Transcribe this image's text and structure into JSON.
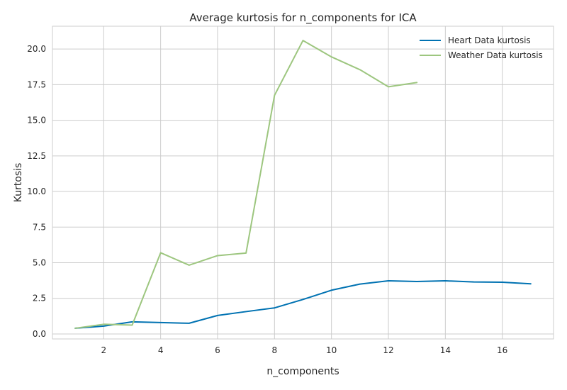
{
  "chart_data": {
    "type": "line",
    "title": "Average kurtosis for n_components for ICA",
    "xlabel": "n_components",
    "ylabel": "Kurtosis",
    "xlim": [
      0.2,
      17.8
    ],
    "ylim": [
      -0.35,
      21.6
    ],
    "xticks": [
      2,
      4,
      6,
      8,
      10,
      12,
      14,
      16
    ],
    "yticks": [
      0.0,
      2.5,
      5.0,
      7.5,
      10.0,
      12.5,
      15.0,
      17.5,
      20.0
    ],
    "ytick_labels": [
      "0.0",
      "2.5",
      "5.0",
      "7.5",
      "10.0",
      "12.5",
      "15.0",
      "17.5",
      "20.0"
    ],
    "grid": true,
    "legend_position": "top-right",
    "series": [
      {
        "name": "Heart Data kurtosis",
        "color": "#0072b2",
        "x": [
          1,
          2,
          3,
          4,
          5,
          6,
          7,
          8,
          9,
          10,
          11,
          12,
          13,
          14,
          15,
          16,
          17
        ],
        "values": [
          0.4,
          0.55,
          0.85,
          0.8,
          0.75,
          1.3,
          1.57,
          1.83,
          2.42,
          3.07,
          3.5,
          3.73,
          3.68,
          3.73,
          3.65,
          3.63,
          3.52
        ]
      },
      {
        "name": "Weather Data kurtosis",
        "color": "#9dc67f",
        "x": [
          1,
          2,
          3,
          4,
          5,
          6,
          7,
          8,
          9,
          10,
          11,
          12,
          13
        ],
        "values": [
          0.4,
          0.68,
          0.62,
          5.7,
          4.83,
          5.5,
          5.68,
          16.75,
          20.6,
          19.45,
          18.55,
          17.35,
          17.65
        ]
      }
    ]
  }
}
